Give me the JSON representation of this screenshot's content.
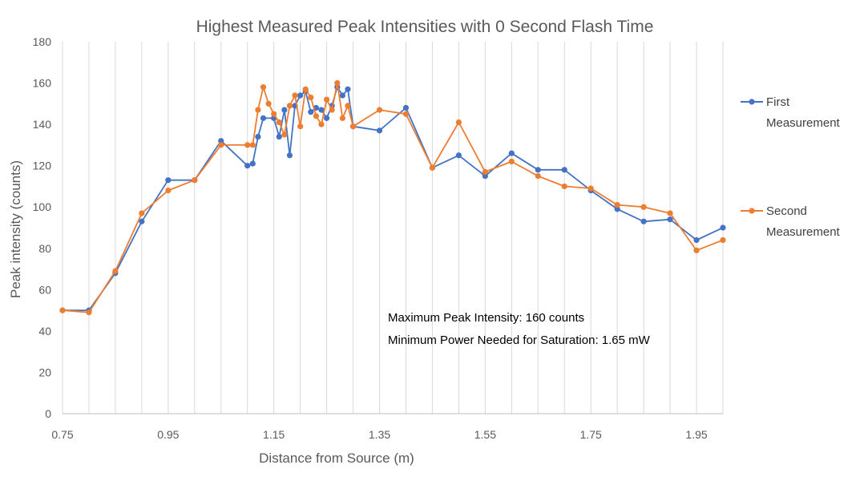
{
  "chart_data": {
    "type": "line",
    "title": "Highest Measured Peak Intensities with 0 Second Flash Time",
    "xlabel": "Distance from Source (m)",
    "ylabel": "Peak intensity (counts)",
    "xlim": [
      0.75,
      2.0
    ],
    "ylim": [
      0,
      180
    ],
    "x_ticks": [
      "0.75",
      "0.95",
      "1.15",
      "1.35",
      "1.55",
      "1.75",
      "1.95"
    ],
    "x_tick_values": [
      0.75,
      0.95,
      1.15,
      1.35,
      1.55,
      1.75,
      1.95
    ],
    "y_ticks": [
      "0",
      "20",
      "40",
      "60",
      "80",
      "100",
      "120",
      "140",
      "160",
      "180"
    ],
    "y_tick_values": [
      0,
      20,
      40,
      60,
      80,
      100,
      120,
      140,
      160,
      180
    ],
    "grid": "vertical",
    "legend_position": "right",
    "series": [
      {
        "name_lines": [
          "First",
          "Measurement"
        ],
        "color": "#4472C4",
        "x": [
          0.75,
          0.8,
          0.85,
          0.9,
          0.95,
          1.0,
          1.05,
          1.1,
          1.11,
          1.12,
          1.13,
          1.15,
          1.16,
          1.17,
          1.18,
          1.19,
          1.2,
          1.21,
          1.22,
          1.23,
          1.24,
          1.25,
          1.26,
          1.27,
          1.28,
          1.29,
          1.3,
          1.35,
          1.4,
          1.45,
          1.5,
          1.55,
          1.6,
          1.65,
          1.7,
          1.75,
          1.8,
          1.85,
          1.9,
          1.95,
          2.0
        ],
        "y": [
          50,
          50,
          68,
          93,
          113,
          113,
          132,
          120,
          121,
          134,
          143,
          143,
          134,
          147,
          125,
          149,
          154,
          156,
          146,
          148,
          147,
          143,
          149,
          158,
          154,
          157,
          139,
          137,
          148,
          119,
          125,
          115,
          126,
          118,
          118,
          108,
          99,
          93,
          94,
          84,
          90
        ]
      },
      {
        "name_lines": [
          "Second",
          "Measurement"
        ],
        "color": "#ED7D31",
        "x": [
          0.75,
          0.8,
          0.85,
          0.9,
          0.95,
          1.0,
          1.05,
          1.1,
          1.11,
          1.12,
          1.13,
          1.14,
          1.15,
          1.16,
          1.17,
          1.18,
          1.19,
          1.2,
          1.21,
          1.22,
          1.23,
          1.24,
          1.25,
          1.26,
          1.27,
          1.28,
          1.29,
          1.3,
          1.35,
          1.4,
          1.45,
          1.5,
          1.55,
          1.6,
          1.65,
          1.7,
          1.75,
          1.8,
          1.85,
          1.9,
          1.95,
          2.0
        ],
        "y": [
          50,
          49,
          69,
          97,
          108,
          113,
          130,
          130,
          130,
          147,
          158,
          150,
          145,
          141,
          135,
          149,
          154,
          139,
          157,
          153,
          144,
          140,
          152,
          147,
          160,
          143,
          149,
          139,
          147,
          145,
          119,
          141,
          117,
          122,
          115,
          110,
          109,
          101,
          100,
          97,
          79,
          84
        ]
      }
    ],
    "annotations": [
      "Maximum Peak Intensity: 160 counts",
      "Minimum Power Needed for Saturation: 1.65 mW"
    ]
  }
}
